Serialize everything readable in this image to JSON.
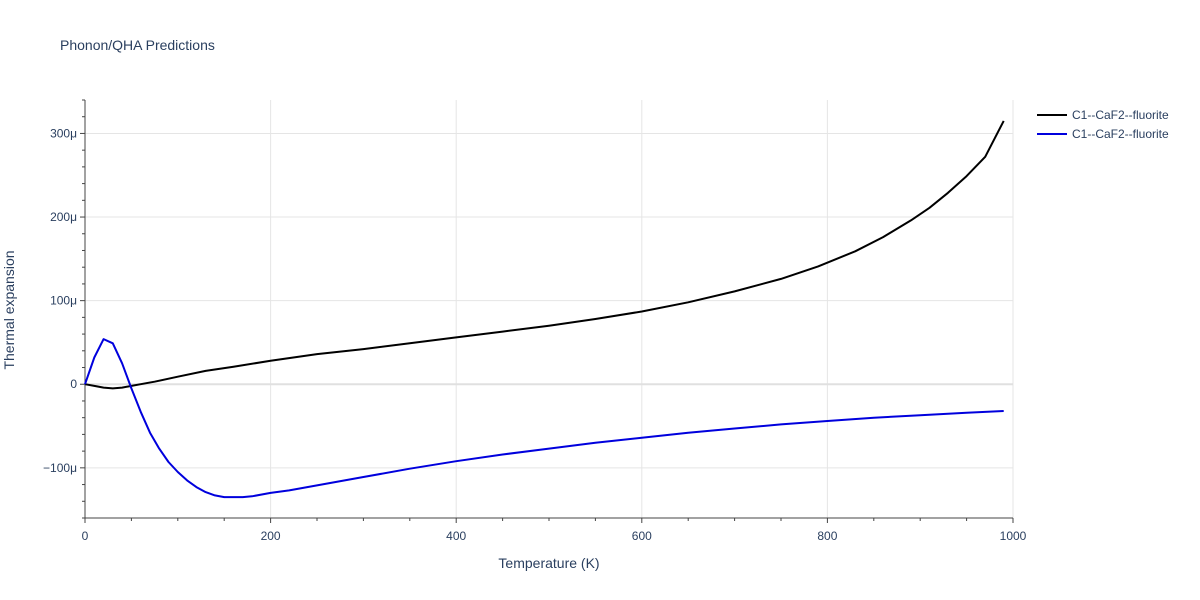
{
  "chart_data": {
    "type": "line",
    "title": "Phonon/QHA Predictions",
    "xlabel": "Temperature (K)",
    "ylabel": "Thermal expansion",
    "xlim": [
      0,
      1000
    ],
    "ylim": [
      -160,
      340
    ],
    "y_unit_note": "values in micro-units (μ)",
    "x_ticks": [
      0,
      200,
      400,
      600,
      800,
      1000
    ],
    "x_tick_labels": [
      "0",
      "200",
      "400",
      "600",
      "800",
      "1000"
    ],
    "y_ticks": [
      -100,
      0,
      100,
      200,
      300
    ],
    "y_tick_labels": [
      "−100μ",
      "0",
      "100μ",
      "200μ",
      "300μ"
    ],
    "grid": true,
    "legend_position": "top-right",
    "series": [
      {
        "name": "C1--CaF2--fluorite",
        "color": "#000000",
        "x": [
          0,
          10,
          20,
          30,
          40,
          50,
          60,
          75,
          100,
          130,
          160,
          200,
          250,
          300,
          350,
          400,
          450,
          500,
          550,
          600,
          650,
          700,
          750,
          790,
          830,
          860,
          890,
          910,
          930,
          950,
          970,
          990
        ],
        "y": [
          0,
          -2,
          -4,
          -5,
          -4,
          -2,
          0,
          3,
          9,
          16,
          21,
          28,
          36,
          42,
          49,
          56,
          63,
          70,
          78,
          87,
          98,
          111,
          126,
          141,
          159,
          176,
          196,
          211,
          229,
          249,
          272,
          315
        ]
      },
      {
        "name": "C1--CaF2--fluorite",
        "color": "#0000dd",
        "x": [
          0,
          10,
          20,
          30,
          40,
          50,
          60,
          70,
          80,
          90,
          100,
          110,
          120,
          130,
          140,
          150,
          160,
          170,
          180,
          200,
          220,
          250,
          300,
          350,
          400,
          450,
          500,
          550,
          600,
          650,
          700,
          750,
          800,
          850,
          900,
          950,
          990
        ],
        "y": [
          0,
          32,
          54,
          49,
          25,
          -5,
          -33,
          -58,
          -77,
          -93,
          -105,
          -115,
          -123,
          -129,
          -133,
          -135,
          -135,
          -135,
          -134,
          -130,
          -127,
          -121,
          -111,
          -101,
          -92,
          -84,
          -77,
          -70,
          -64,
          -58,
          -53,
          -48,
          -44,
          -40,
          -37,
          -34,
          -32
        ]
      }
    ]
  }
}
